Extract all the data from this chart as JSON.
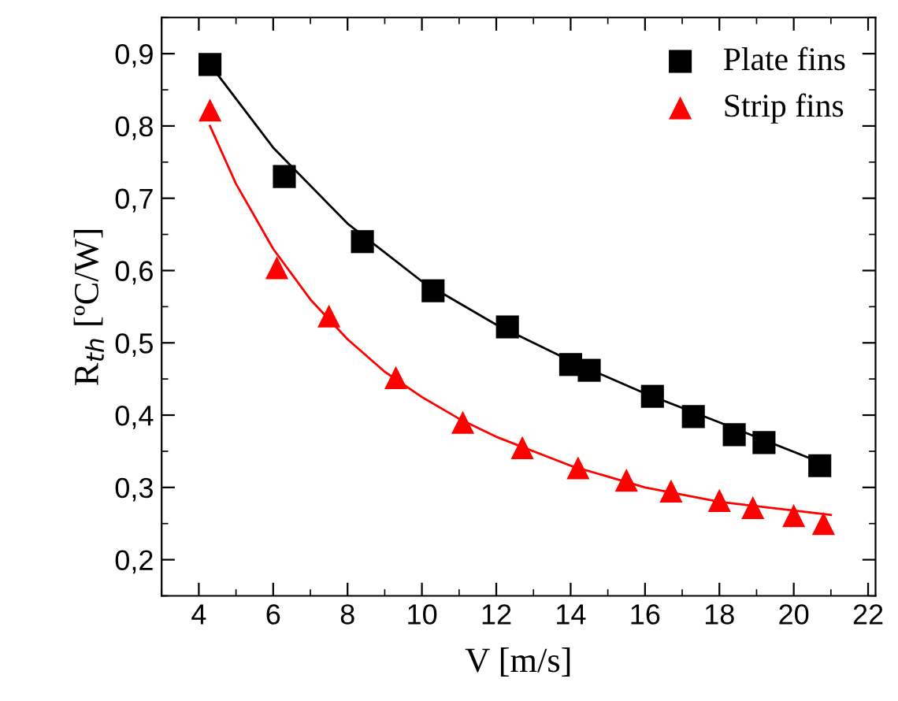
{
  "chart_data": {
    "type": "scatter",
    "xlabel": "V [m/s]",
    "ylabel": "R$_{th}$ [ºC/W]",
    "xlim": [
      3,
      22.2
    ],
    "ylim": [
      0.15,
      0.95
    ],
    "xticks": [
      4,
      6,
      8,
      10,
      12,
      14,
      16,
      18,
      20,
      22
    ],
    "yticks": [
      {
        "value": 0.2,
        "label": "0,2"
      },
      {
        "value": 0.3,
        "label": "0,3"
      },
      {
        "value": 0.4,
        "label": "0,4"
      },
      {
        "value": 0.5,
        "label": "0,5"
      },
      {
        "value": 0.6,
        "label": "0,6"
      },
      {
        "value": 0.7,
        "label": "0,7"
      },
      {
        "value": 0.8,
        "label": "0,8"
      },
      {
        "value": 0.9,
        "label": "0,9"
      }
    ],
    "grid": false,
    "legend": "top right",
    "series": [
      {
        "name": "Plate fins",
        "color": "#000000",
        "marker": "square",
        "x": [
          4.3,
          6.3,
          8.4,
          10.3,
          12.3,
          14.0,
          14.5,
          16.2,
          17.3,
          18.4,
          19.2,
          20.7
        ],
        "values": [
          0.885,
          0.73,
          0.64,
          0.572,
          0.522,
          0.47,
          0.462,
          0.426,
          0.398,
          0.373,
          0.362,
          0.33
        ]
      },
      {
        "name": "Strip fins",
        "color": "#ff0000",
        "marker": "triangle",
        "x": [
          4.3,
          6.1,
          7.5,
          9.3,
          11.1,
          12.7,
          14.2,
          15.5,
          16.7,
          18.0,
          18.9,
          20.0,
          20.8
        ],
        "values": [
          0.822,
          0.604,
          0.537,
          0.452,
          0.39,
          0.355,
          0.327,
          0.31,
          0.295,
          0.282,
          0.272,
          0.261,
          0.25
        ]
      },
      {
        "type": "line",
        "color": "#000000",
        "marker": "none",
        "x": [
          4.3,
          6,
          8,
          10,
          12,
          14,
          16,
          18,
          20.7
        ],
        "values": [
          0.885,
          0.77,
          0.665,
          0.585,
          0.525,
          0.475,
          0.43,
          0.39,
          0.335
        ]
      },
      {
        "type": "line",
        "color": "#ff0000",
        "marker": "none",
        "x": [
          4.3,
          5,
          6,
          7,
          8,
          9,
          10,
          11,
          12,
          14,
          16,
          18,
          21
        ],
        "values": [
          0.8,
          0.72,
          0.63,
          0.56,
          0.505,
          0.46,
          0.425,
          0.395,
          0.37,
          0.33,
          0.3,
          0.28,
          0.262
        ]
      }
    ]
  }
}
